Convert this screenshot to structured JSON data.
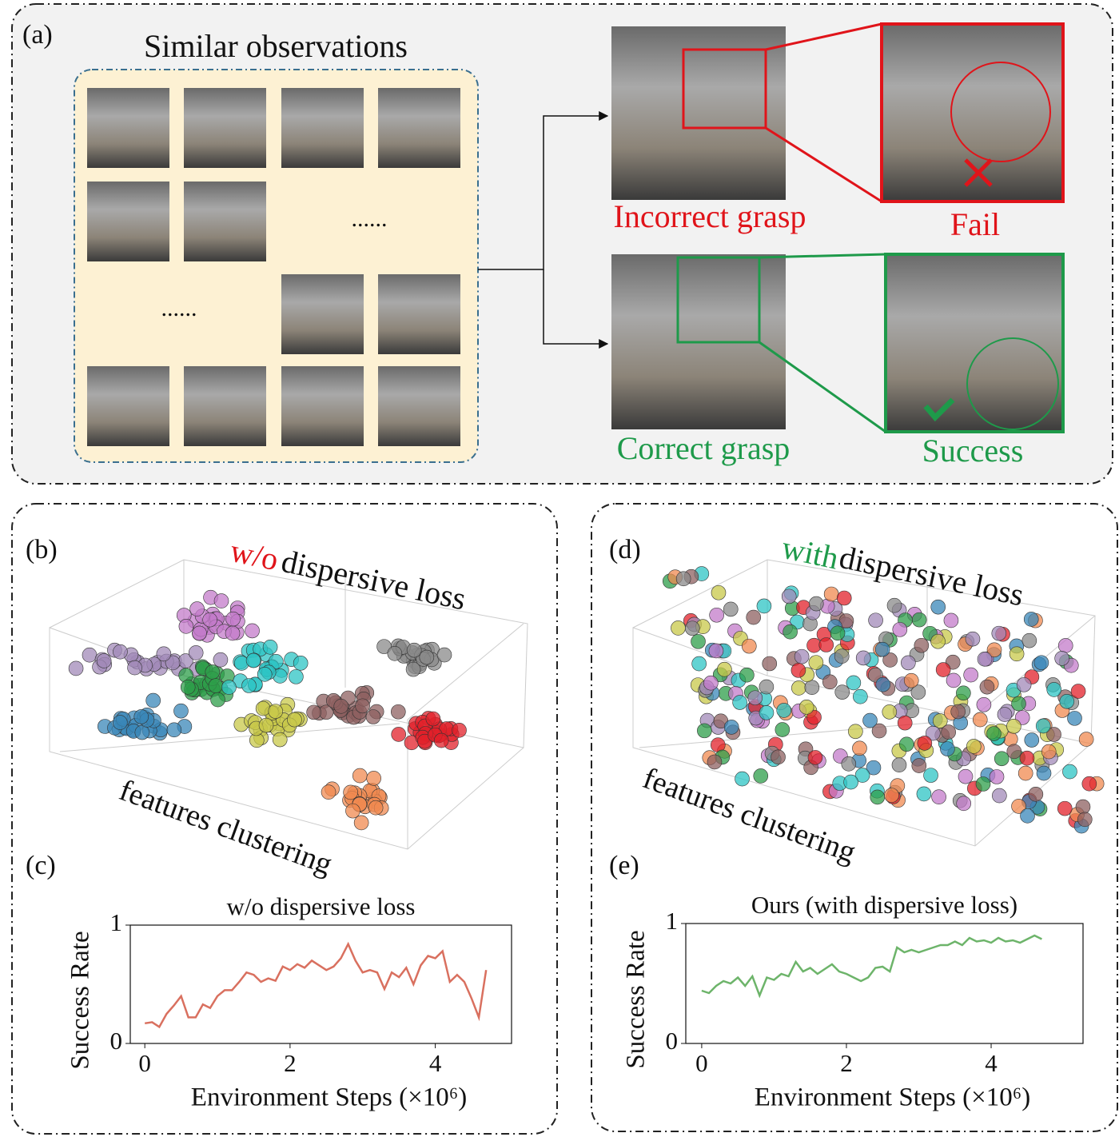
{
  "panel_a": {
    "label": "(a)",
    "title": "Similar observations",
    "ellipsis": [
      "......",
      "......"
    ],
    "incorrect": "Incorrect grasp",
    "fail": "Fail",
    "correct": "Correct grasp",
    "success": "Success"
  },
  "panel_b": {
    "label": "(b)",
    "prefix": "w/o",
    "title": "dispersive loss",
    "axis_label": "features clustering"
  },
  "panel_d": {
    "label": "(d)",
    "prefix": "with",
    "title": "dispersive loss",
    "axis_label": "features clustering"
  },
  "cluster_colors": [
    "#3a87b8",
    "#c37bc9",
    "#a28ab8",
    "#2e9e4a",
    "#2ec4c4",
    "#c8c84a",
    "#8e6060",
    "#e2202a",
    "#f08a50",
    "#8a8a8a"
  ],
  "chart_data": [
    {
      "type": "line",
      "panel_label": "(c)",
      "title": "w/o dispersive loss",
      "x_label": "Environment Steps (×10⁶)",
      "y_label": "Success Rate",
      "color": "#d9705f",
      "x": [
        0,
        0.1,
        0.2,
        0.3,
        0.4,
        0.5,
        0.6,
        0.7,
        0.8,
        0.9,
        1.0,
        1.1,
        1.2,
        1.3,
        1.4,
        1.5,
        1.6,
        1.7,
        1.8,
        1.9,
        2.0,
        2.1,
        2.2,
        2.3,
        2.4,
        2.5,
        2.6,
        2.7,
        2.8,
        2.9,
        3.0,
        3.1,
        3.2,
        3.3,
        3.4,
        3.5,
        3.6,
        3.7,
        3.8,
        3.9,
        4.0,
        4.1,
        4.2,
        4.3,
        4.4,
        4.5,
        4.6,
        4.7
      ],
      "values": [
        0.17,
        0.18,
        0.14,
        0.25,
        0.32,
        0.4,
        0.22,
        0.22,
        0.33,
        0.3,
        0.4,
        0.45,
        0.45,
        0.52,
        0.6,
        0.58,
        0.52,
        0.55,
        0.53,
        0.65,
        0.62,
        0.67,
        0.64,
        0.7,
        0.66,
        0.62,
        0.65,
        0.72,
        0.84,
        0.7,
        0.6,
        0.62,
        0.6,
        0.46,
        0.6,
        0.56,
        0.64,
        0.5,
        0.66,
        0.74,
        0.72,
        0.78,
        0.52,
        0.58,
        0.52,
        0.38,
        0.22,
        0.62
      ],
      "xlim": [
        -0.2,
        5.05
      ],
      "ylim": [
        0,
        1
      ],
      "xticks": [
        0,
        2,
        4
      ],
      "yticks": [
        0,
        1
      ]
    },
    {
      "type": "line",
      "panel_label": "(e)",
      "title": "Ours (with dispersive loss)",
      "x_label": "Environment Steps (×10⁶)",
      "y_label": "Success Rate",
      "color": "#6db46a",
      "x": [
        0,
        0.1,
        0.2,
        0.3,
        0.4,
        0.5,
        0.6,
        0.7,
        0.8,
        0.9,
        1.0,
        1.1,
        1.2,
        1.3,
        1.4,
        1.5,
        1.6,
        1.7,
        1.8,
        1.9,
        2.0,
        2.1,
        2.2,
        2.3,
        2.4,
        2.5,
        2.6,
        2.7,
        2.8,
        2.9,
        3.0,
        3.1,
        3.2,
        3.3,
        3.4,
        3.5,
        3.6,
        3.7,
        3.8,
        3.9,
        4.0,
        4.1,
        4.2,
        4.3,
        4.4,
        4.5,
        4.6,
        4.7
      ],
      "values": [
        0.44,
        0.42,
        0.48,
        0.52,
        0.5,
        0.55,
        0.48,
        0.56,
        0.4,
        0.55,
        0.53,
        0.58,
        0.56,
        0.68,
        0.6,
        0.63,
        0.58,
        0.62,
        0.66,
        0.6,
        0.58,
        0.55,
        0.52,
        0.55,
        0.63,
        0.64,
        0.6,
        0.8,
        0.76,
        0.78,
        0.76,
        0.78,
        0.8,
        0.82,
        0.82,
        0.85,
        0.82,
        0.88,
        0.85,
        0.86,
        0.84,
        0.88,
        0.85,
        0.86,
        0.84,
        0.87,
        0.9,
        0.87
      ],
      "xlim": [
        -0.22,
        5.27
      ],
      "ylim": [
        0,
        1
      ],
      "xticks": [
        0,
        2,
        4
      ],
      "yticks": [
        0,
        1
      ]
    }
  ]
}
